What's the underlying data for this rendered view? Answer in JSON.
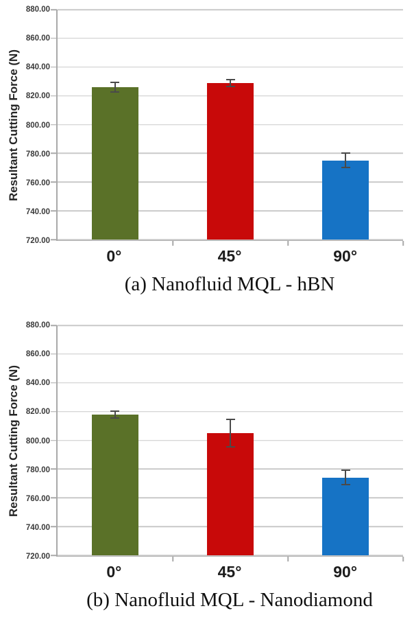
{
  "page": {
    "background": "#ffffff"
  },
  "chart_data": [
    {
      "type": "bar",
      "title": "(a) Nanofluid MQL - hBN",
      "xlabel": "",
      "ylabel": "Resultant Cutting Force (N)",
      "categories": [
        "0°",
        "45°",
        "90°"
      ],
      "values": [
        826,
        829,
        775
      ],
      "errors": [
        4,
        3,
        5.5
      ],
      "colors": [
        "#5a7128",
        "#c80909",
        "#1673c5"
      ],
      "ylim": [
        720,
        880
      ],
      "yticks": [
        880,
        860,
        840,
        820,
        800,
        780,
        760,
        740,
        720
      ],
      "ytick_format_decimals": 2,
      "grid": true,
      "legend_position": "none",
      "gridline_color": "#c9c9c9",
      "axis_color": "#a9a9a9",
      "error_bar_color": "#4a4a4a"
    },
    {
      "type": "bar",
      "title": "(b) Nanofluid MQL - Nanodiamond",
      "xlabel": "",
      "ylabel": "Resultant Cutting Force (N)",
      "categories": [
        "0°",
        "45°",
        "90°"
      ],
      "values": [
        818,
        805,
        774
      ],
      "errors": [
        3,
        10,
        5.5
      ],
      "colors": [
        "#5a7128",
        "#c80909",
        "#1673c5"
      ],
      "ylim": [
        720,
        880
      ],
      "yticks": [
        880,
        860,
        840,
        820,
        800,
        780,
        760,
        740,
        720
      ],
      "ytick_format_decimals": 2,
      "grid": true,
      "legend_position": "none",
      "gridline_color": "#c9c9c9",
      "axis_color": "#a9a9a9",
      "error_bar_color": "#4a4a4a"
    }
  ]
}
